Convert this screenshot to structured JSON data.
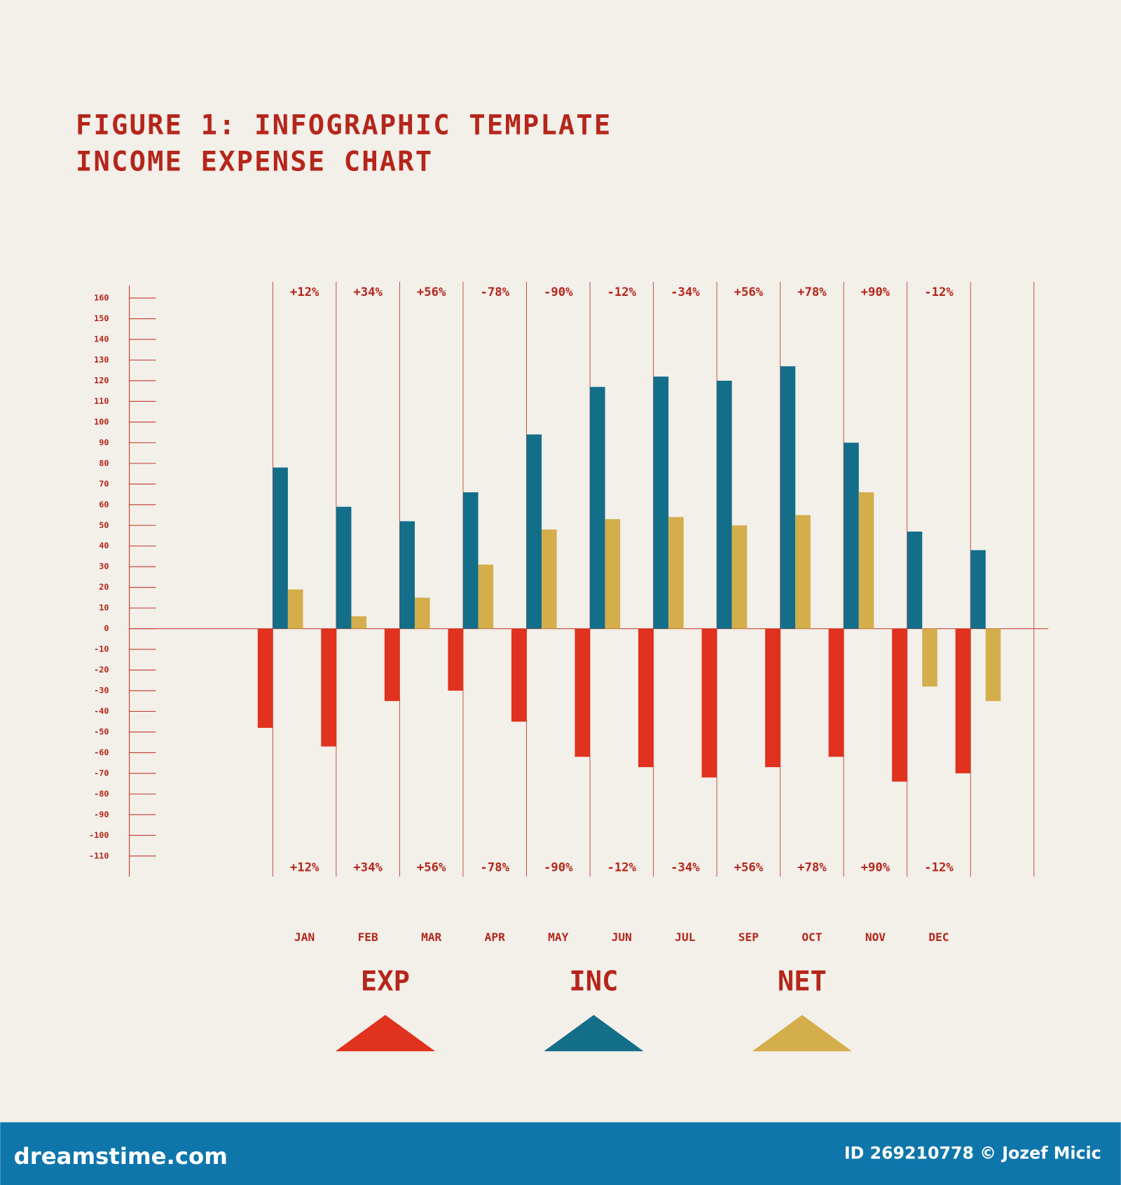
{
  "chart_data": {
    "type": "bar",
    "title": "FIGURE 1: INFOGRAPHIC TEMPLATE",
    "subtitle": "INCOME EXPENSE CHART",
    "categories": [
      "JAN",
      "FEB",
      "MAR",
      "APR",
      "MAY",
      "JUN",
      "JUL",
      "SEP",
      "OCT",
      "NOV",
      "DEC",
      null
    ],
    "top_labels": [
      "+12%",
      "+34%",
      "+56%",
      "-78%",
      "-90%",
      "-12%",
      "-34%",
      "+56%",
      "+78%",
      "+90%",
      "-12%",
      null
    ],
    "bottom_labels": [
      "+12%",
      "+34%",
      "+56%",
      "-78%",
      "-90%",
      "-12%",
      "-34%",
      "+56%",
      "+78%",
      "+90%",
      "-12%",
      null
    ],
    "series": [
      {
        "name": "EXP",
        "color": "#e0321e",
        "values": [
          -48,
          -57,
          -35,
          -30,
          -45,
          -62,
          -67,
          -72,
          -67,
          -62,
          -74,
          -70
        ]
      },
      {
        "name": "INC",
        "color": "#136e8a",
        "values": [
          78,
          59,
          52,
          66,
          94,
          117,
          122,
          120,
          127,
          90,
          47,
          38
        ]
      },
      {
        "name": "NET",
        "color": "#d3ae4a",
        "values": [
          19,
          6,
          15,
          31,
          48,
          53,
          54,
          50,
          55,
          66,
          -28,
          -35
        ]
      }
    ],
    "ylim": [
      -120,
      166
    ],
    "yticks": [
      -110,
      -100,
      -90,
      -80,
      -70,
      -60,
      -50,
      -40,
      -30,
      -20,
      -10,
      0,
      10,
      20,
      30,
      40,
      50,
      60,
      70,
      80,
      90,
      100,
      110,
      120,
      130,
      140,
      150,
      160
    ],
    "footer": {
      "site": "dreamstime.com",
      "credit": "ID 269210778 © Jozef Micic"
    }
  }
}
